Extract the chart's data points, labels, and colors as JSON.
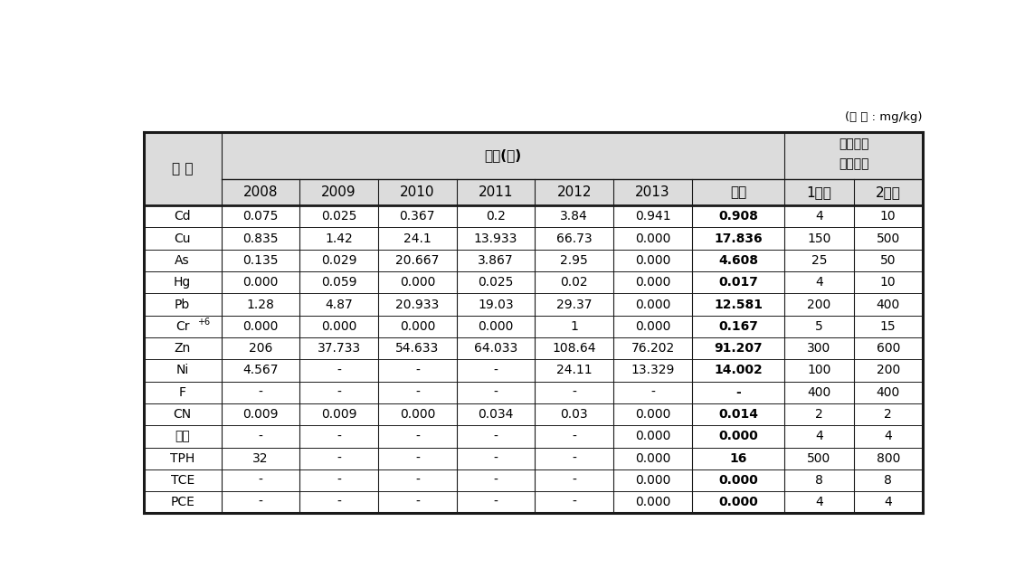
{
  "unit_label": "(단 위 : mg/kg)",
  "col0_header": "구 분",
  "yeondo_header": "연도(년)",
  "soil_header_line1": "토양오염",
  "soil_header_line2": "우려기준",
  "subheaders": [
    "2008",
    "2009",
    "2010",
    "2011",
    "2012",
    "2013",
    "평균",
    "1지역",
    "2지역"
  ],
  "rows": [
    [
      "Cd",
      "0.075",
      "0.025",
      "0.367",
      "0.2",
      "3.84",
      "0.941",
      "0.908",
      "4",
      "10"
    ],
    [
      "Cu",
      "0.835",
      "1.42",
      "24.1",
      "13.933",
      "66.73",
      "0.000",
      "17.836",
      "150",
      "500"
    ],
    [
      "As",
      "0.135",
      "0.029",
      "20.667",
      "3.867",
      "2.95",
      "0.000",
      "4.608",
      "25",
      "50"
    ],
    [
      "Hg",
      "0.000",
      "0.059",
      "0.000",
      "0.025",
      "0.02",
      "0.000",
      "0.017",
      "4",
      "10"
    ],
    [
      "Pb",
      "1.28",
      "4.87",
      "20.933",
      "19.03",
      "29.37",
      "0.000",
      "12.581",
      "200",
      "400"
    ],
    [
      "Cr+6",
      "0.000",
      "0.000",
      "0.000",
      "0.000",
      "1",
      "0.000",
      "0.167",
      "5",
      "15"
    ],
    [
      "Zn",
      "206",
      "37.733",
      "54.633",
      "64.033",
      "108.64",
      "76.202",
      "91.207",
      "300",
      "600"
    ],
    [
      "Ni",
      "4.567",
      "-",
      "-",
      "-",
      "24.11",
      "13.329",
      "14.002",
      "100",
      "200"
    ],
    [
      "F",
      "-",
      "-",
      "-",
      "-",
      "-",
      "-",
      "-",
      "400",
      "400"
    ],
    [
      "CN",
      "0.009",
      "0.009",
      "0.000",
      "0.034",
      "0.03",
      "0.000",
      "0.014",
      "2",
      "2"
    ],
    [
      "페놀",
      "-",
      "-",
      "-",
      "-",
      "-",
      "0.000",
      "0.000",
      "4",
      "4"
    ],
    [
      "TPH",
      "32",
      "-",
      "-",
      "-",
      "-",
      "0.000",
      "16",
      "500",
      "800"
    ],
    [
      "TCE",
      "-",
      "-",
      "-",
      "-",
      "-",
      "0.000",
      "0.000",
      "8",
      "8"
    ],
    [
      "PCE",
      "-",
      "-",
      "-",
      "-",
      "-",
      "0.000",
      "0.000",
      "4",
      "4"
    ]
  ],
  "avg_col_index": 7,
  "bg_header": "#dcdcdc",
  "bg_white": "#ffffff",
  "border_dark": "#1a1a1a",
  "border_light": "#555555",
  "fig_width": 11.43,
  "fig_height": 6.5
}
